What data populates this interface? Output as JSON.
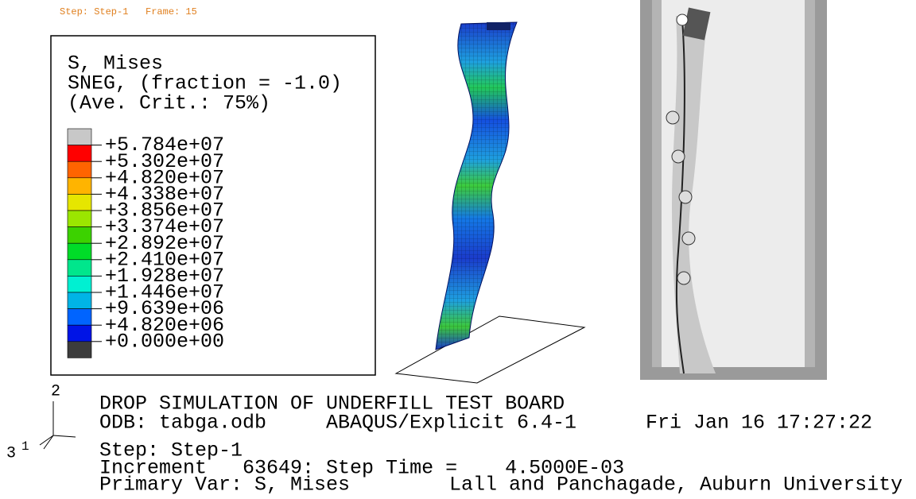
{
  "header": {
    "status": "Step: Step-1   Frame: 15"
  },
  "legend": {
    "lines": [
      "S, Mises",
      "SNEG, (fraction = -1.0)",
      "(Ave. Crit.: 75%)"
    ],
    "labels": [
      "+5.784e+07",
      "+5.302e+07",
      "+4.820e+07",
      "+4.338e+07",
      "+3.856e+07",
      "+3.374e+07",
      "+2.892e+07",
      "+2.410e+07",
      "+1.928e+07",
      "+1.446e+07",
      "+9.639e+06",
      "+4.820e+06",
      "+0.000e+00"
    ],
    "colors": [
      "#c8c8c8",
      "#ff0000",
      "#ff6400",
      "#ffb400",
      "#e6e600",
      "#9be600",
      "#3cd200",
      "#00dc28",
      "#00e68c",
      "#00f0d2",
      "#00b4e6",
      "#0064ff",
      "#0014e6",
      "#3c3c3c"
    ]
  },
  "triad": {
    "y": "2",
    "z": "3",
    "x": "1"
  },
  "info": {
    "title": "DROP SIMULATION OF UNDERFILL TEST BOARD",
    "odb": "ODB: tabga.odb",
    "solver": "ABAQUS/Explicit 6.4-1",
    "date": "Fri Jan 16 17:27:22",
    "step": "Step: Step-1",
    "increment": "Increment   63649: Step Time =    4.5000E-03",
    "primary_var": "Primary Var: S, Mises",
    "credit": "Lall and Panchagade, Auburn University"
  }
}
